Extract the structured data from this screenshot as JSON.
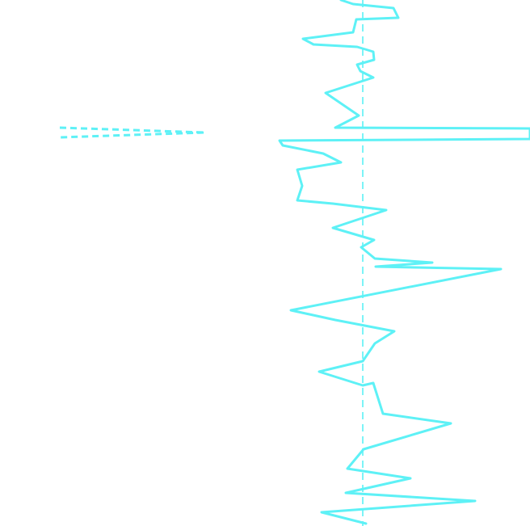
{
  "colors": {
    "background": "#ffffff",
    "trace": "#5ef1f6",
    "center_line": "#6ef3f7"
  },
  "chart_data": {
    "type": "line",
    "orientation": "vertical-trace",
    "title": "",
    "xlabel": "",
    "ylabel": "",
    "grid": false,
    "legend": "none",
    "center_line": "dashed",
    "series": [
      {
        "points": [
          [
            422,
            0
          ],
          [
            437,
            5
          ],
          [
            487,
            10
          ],
          [
            493,
            22
          ],
          [
            441,
            24
          ],
          [
            437,
            40
          ],
          [
            375,
            48
          ],
          [
            388,
            55
          ],
          [
            442,
            58
          ],
          [
            462,
            64
          ],
          [
            463,
            74
          ],
          [
            442,
            80
          ],
          [
            446,
            88
          ],
          [
            462,
            96
          ],
          [
            403,
            115
          ],
          [
            444,
            143
          ],
          [
            415,
            158
          ],
          [
            656,
            159
          ],
          [
            656,
            172
          ],
          [
            346,
            174
          ],
          [
            350,
            180
          ],
          [
            400,
            190
          ],
          [
            422,
            201
          ],
          [
            368,
            210
          ],
          [
            374,
            230
          ],
          [
            368,
            248
          ],
          [
            412,
            252
          ],
          [
            478,
            260
          ],
          [
            412,
            282
          ],
          [
            463,
            297
          ],
          [
            447,
            306
          ],
          [
            464,
            320
          ],
          [
            535,
            325
          ],
          [
            465,
            330
          ],
          [
            620,
            333
          ],
          [
            360,
            384
          ],
          [
            415,
            396
          ],
          [
            488,
            410
          ],
          [
            464,
            425
          ],
          [
            449,
            447
          ],
          [
            395,
            460
          ],
          [
            449,
            477
          ],
          [
            462,
            474
          ],
          [
            474,
            512
          ],
          [
            558,
            524
          ],
          [
            450,
            556
          ],
          [
            430,
            580
          ],
          [
            508,
            592
          ],
          [
            428,
            610
          ],
          [
            588,
            620
          ],
          [
            398,
            634
          ],
          [
            453,
            648
          ]
        ]
      },
      {
        "points": [
          [
            74,
            158
          ],
          [
            254,
            164
          ],
          [
            74,
            170
          ]
        ]
      }
    ],
    "center_x": 449
  }
}
